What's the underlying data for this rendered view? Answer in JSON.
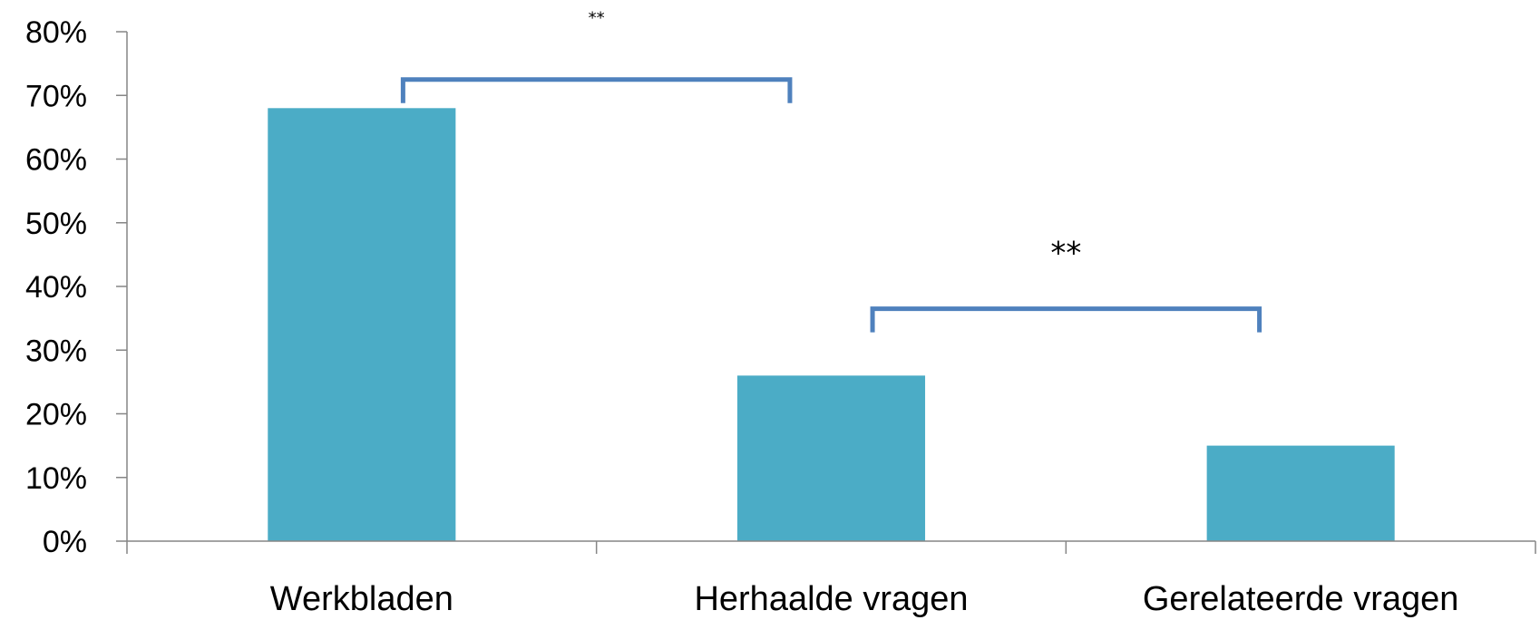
{
  "chart_data": {
    "type": "bar",
    "categories": [
      "Werkbladen",
      "Herhaalde vragen",
      "Gerelateerde vragen"
    ],
    "values": [
      68,
      26,
      15
    ],
    "ylim": [
      0,
      80
    ],
    "yticks": [
      "0%",
      "10%",
      "20%",
      "30%",
      "40%",
      "50%",
      "60%",
      "70%",
      "80%"
    ],
    "grid": false,
    "legend": "none",
    "bar_color": "#4BACC6",
    "bracket_color": "#4F81BD",
    "annotations": [
      {
        "label": "**",
        "from_category": 0,
        "to_category": 1,
        "level": 72.5,
        "size": "small"
      },
      {
        "label": "**",
        "from_category": 1,
        "to_category": 2,
        "level": 36.5,
        "size": "large"
      }
    ]
  }
}
